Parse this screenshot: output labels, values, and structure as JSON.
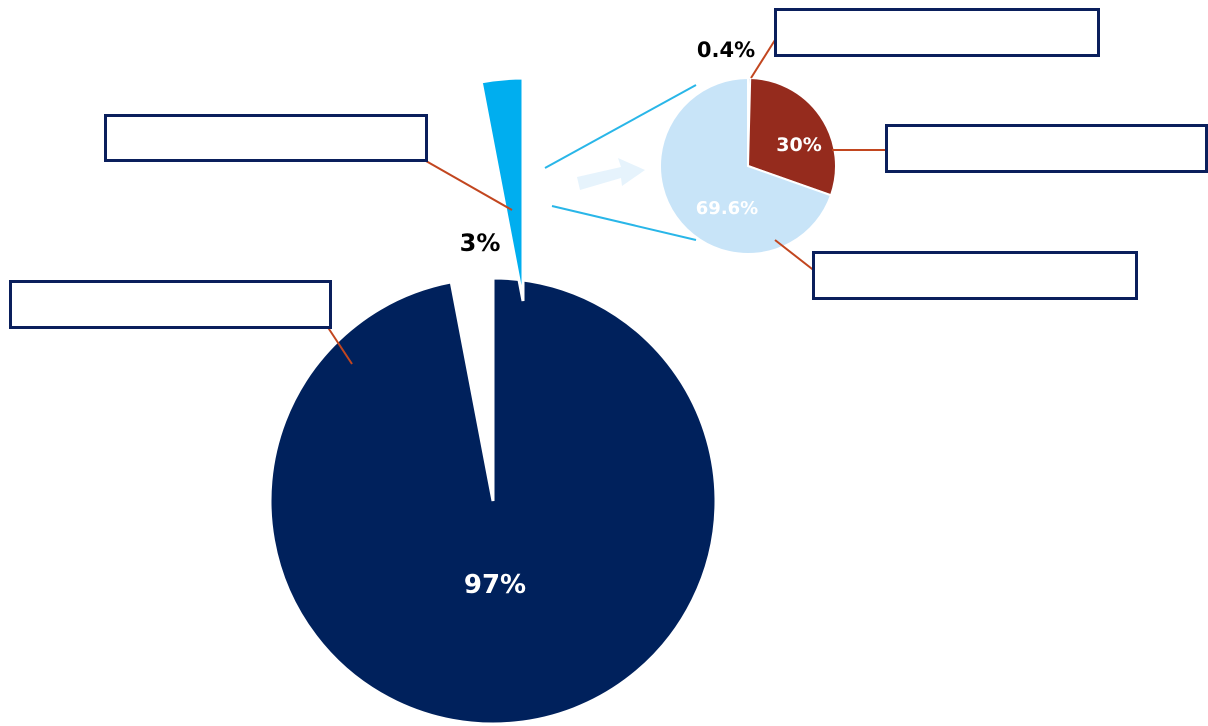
{
  "chart_data": [
    {
      "type": "pie",
      "slices": [
        {
          "label": "97%",
          "value": 97,
          "color": "#00215c"
        },
        {
          "label": "3%",
          "value": 3,
          "color": "#00aeef"
        }
      ],
      "title": ""
    },
    {
      "type": "pie",
      "slices": [
        {
          "label": "0.4%",
          "value": 0.4,
          "color": "#0d2a6b"
        },
        {
          "label": "30%",
          "value": 30,
          "color": "#952b1d"
        },
        {
          "label": "69.6%",
          "value": 69.6,
          "color": "#c8e4f8"
        }
      ],
      "title": ""
    }
  ],
  "colors": {
    "leader_line": "#c2461f",
    "connector_line": "#29b6e8",
    "arrow": "#e6f3fc",
    "box_border": "#0a1f5c"
  },
  "label_boxes": [
    "",
    "",
    "",
    "",
    ""
  ]
}
